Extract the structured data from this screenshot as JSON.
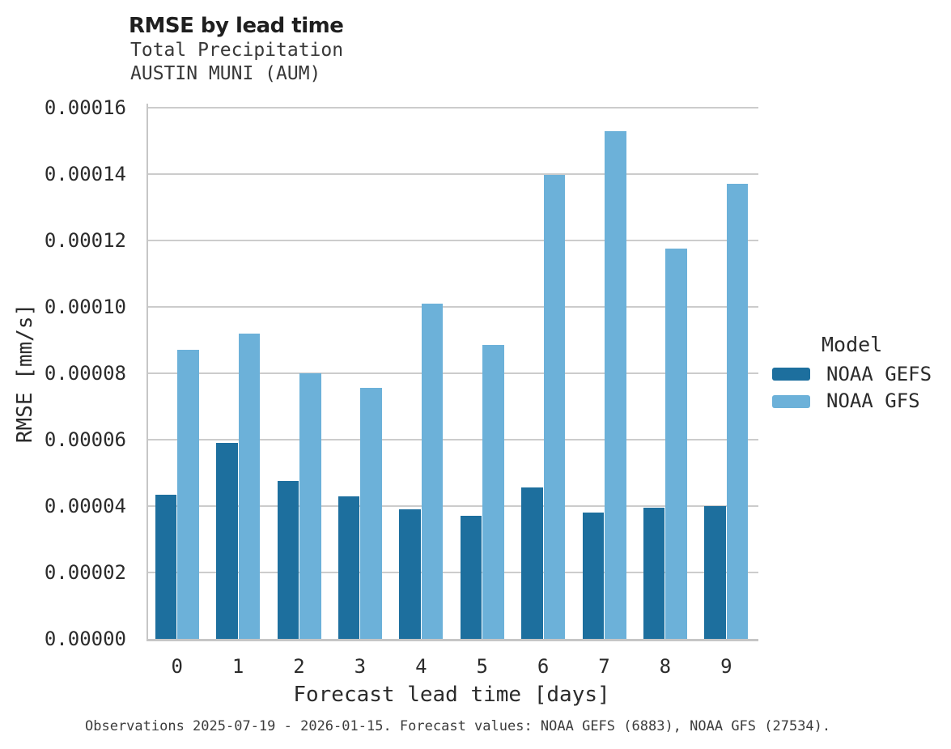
{
  "figure": {
    "title": "RMSE by lead time",
    "subtitle_line1": "Total Precipitation",
    "subtitle_line2": "AUSTIN MUNI (AUM)",
    "caption": "Observations 2025-07-19 - 2026-01-15. Forecast values: NOAA GEFS (6883), NOAA GFS (27534)."
  },
  "legend": {
    "title": "Model",
    "items": [
      {
        "label": "NOAA GEFS",
        "color": "#1d6f9e"
      },
      {
        "label": "NOAA GFS",
        "color": "#6cb1d9"
      }
    ]
  },
  "chart_data": {
    "type": "bar",
    "title": "RMSE by lead time",
    "subtitle": [
      "Total Precipitation",
      "AUSTIN MUNI (AUM)"
    ],
    "xlabel": "Forecast lead time [days]",
    "ylabel": "RMSE [mm/s]",
    "categories": [
      "0",
      "1",
      "2",
      "3",
      "4",
      "5",
      "6",
      "7",
      "8",
      "9"
    ],
    "series": [
      {
        "name": "NOAA GEFS",
        "color": "#1d6f9e",
        "values": [
          4.35e-05,
          5.9e-05,
          4.75e-05,
          4.3e-05,
          3.9e-05,
          3.7e-05,
          4.55e-05,
          3.8e-05,
          3.95e-05,
          4e-05
        ]
      },
      {
        "name": "NOAA GFS",
        "color": "#6cb1d9",
        "values": [
          8.7e-05,
          9.2e-05,
          8e-05,
          7.55e-05,
          0.000101,
          8.85e-05,
          0.0001397,
          0.000153,
          0.0001175,
          0.000137
        ]
      }
    ],
    "ylim": [
      0,
      0.00016
    ],
    "ytick_step": 2e-05,
    "ytick_decimals": 5,
    "grid": true,
    "legend_title": "Model",
    "legend_position": "right",
    "caption": "Observations 2025-07-19 - 2026-01-15. Forecast values: NOAA GEFS (6883), NOAA GFS (27534)."
  },
  "colors": {
    "grid": "#cccccc",
    "spine": "#c6c6c6"
  }
}
